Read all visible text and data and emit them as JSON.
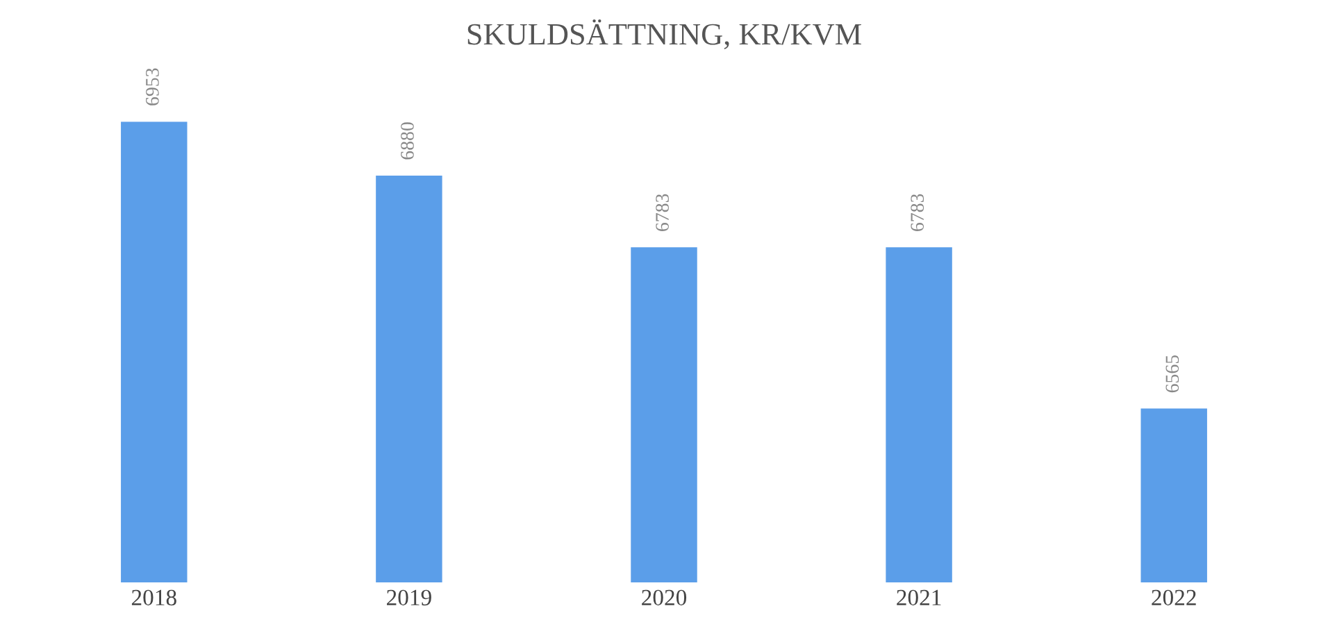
{
  "chart_data": {
    "type": "bar",
    "title": "SKULDSÄTTNING, KR/KVM",
    "categories": [
      "2018",
      "2019",
      "2020",
      "2021",
      "2022"
    ],
    "values": [
      6953,
      6880,
      6783,
      6783,
      6565
    ],
    "color": "#5b9ee9",
    "ylim": [
      6330,
      6953
    ],
    "data_labels": true
  }
}
